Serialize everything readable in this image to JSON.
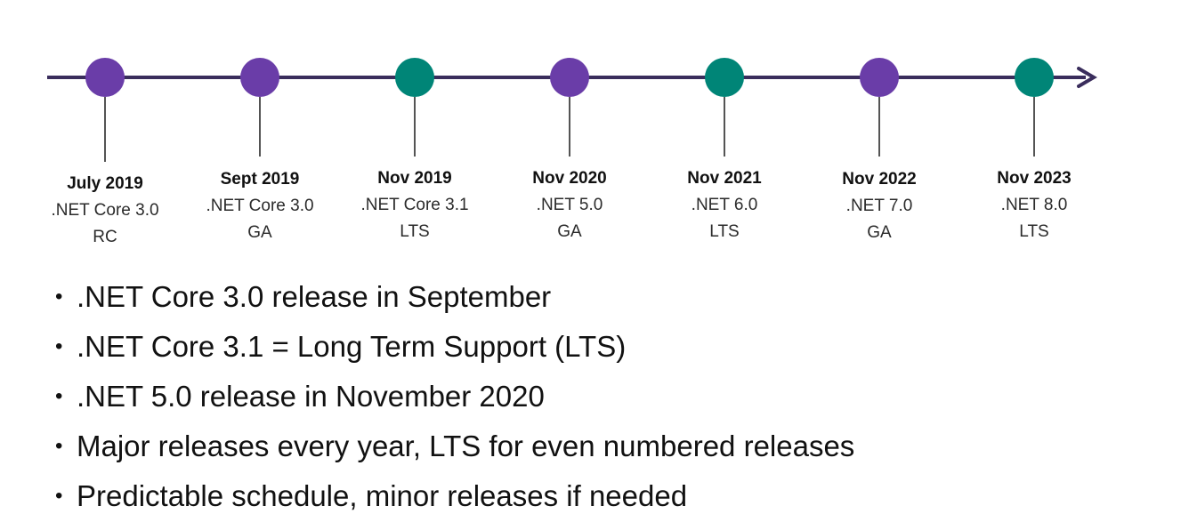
{
  "colors": {
    "line": "#3a2d5c",
    "ga_node": "#6a3da8",
    "lts_node": "#008577",
    "connector": "#1a1a1a"
  },
  "timeline": {
    "milestones": [
      {
        "date": "July 2019",
        "product": ".NET Core 3.0",
        "status": "RC",
        "node_type": "ga"
      },
      {
        "date": "Sept 2019",
        "product": ".NET Core 3.0",
        "status": "GA",
        "node_type": "ga"
      },
      {
        "date": "Nov 2019",
        "product": ".NET Core 3.1",
        "status": "LTS",
        "node_type": "lts"
      },
      {
        "date": "Nov 2020",
        "product": ".NET 5.0",
        "status": "GA",
        "node_type": "ga"
      },
      {
        "date": "Nov 2021",
        "product": ".NET 6.0",
        "status": "LTS",
        "node_type": "lts"
      },
      {
        "date": "Nov 2022",
        "product": ".NET 7.0",
        "status": "GA",
        "node_type": "ga"
      },
      {
        "date": "Nov 2023",
        "product": ".NET 8.0",
        "status": "LTS",
        "node_type": "lts"
      }
    ]
  },
  "bullets": [
    ".NET Core 3.0 release in September",
    ".NET Core 3.1 = Long Term Support (LTS)",
    ".NET 5.0 release in November 2020",
    "Major releases every year, LTS for even numbered releases",
    "Predictable schedule, minor releases if needed"
  ],
  "bullet_marker": "•"
}
